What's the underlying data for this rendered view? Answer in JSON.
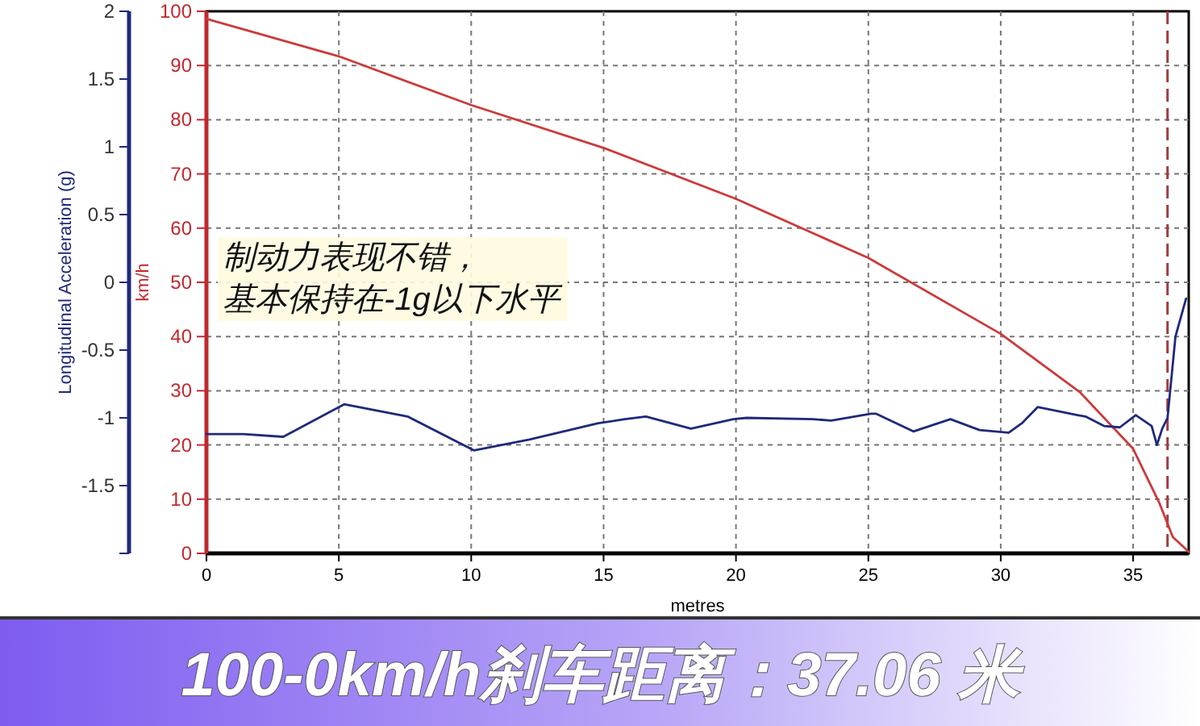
{
  "chart_data": {
    "type": "line",
    "title": "100-0km/h刹车距离：37.06 米",
    "xlabel": "metres",
    "ylabel": "km/h",
    "y2label": "Longitudinal Acceleration (g)",
    "annotations": [
      "制动力表现不错，",
      "基本保持在-1g以下水平"
    ],
    "xlim": [
      0,
      37.1
    ],
    "xticks": [
      0,
      5,
      10,
      15,
      20,
      25,
      30,
      35
    ],
    "ylim": [
      0,
      100
    ],
    "yticks": [
      0,
      10,
      20,
      30,
      40,
      50,
      60,
      70,
      80,
      90,
      100
    ],
    "y2lim": [
      -2,
      2
    ],
    "y2ticks": [
      2,
      1.5,
      1,
      0.5,
      0,
      -0.5,
      -1,
      -1.5,
      {
        "value": -2,
        "label": null
      }
    ],
    "grid": true,
    "marker": "none",
    "line_style": "solid",
    "ref_lines": [
      {
        "axis": "x",
        "value": 36.3,
        "color": "#a03c3c",
        "line_style": "dashed"
      }
    ],
    "series": [
      {
        "color": "#cc3a3a",
        "x": [
          0,
          5,
          10,
          15,
          20,
          25,
          30,
          33,
          35,
          36,
          36.5,
          37.1
        ],
        "values": [
          98.6,
          91.7,
          82.7,
          74.8,
          65.4,
          54.5,
          40.5,
          29.7,
          19.3,
          9.2,
          3,
          0.3
        ]
      },
      {
        "color": "#1f2a7a",
        "axis": "y2",
        "x": [
          0,
          1.4,
          2.9,
          5.2,
          7.6,
          10.1,
          12.2,
          14.8,
          15.8,
          16.6,
          18.3,
          19.9,
          20.4,
          22.9,
          23.6,
          25.1,
          25.3,
          26.7,
          28.1,
          29.2,
          30.3,
          30.8,
          31.4,
          32.9,
          33.2,
          33.9,
          34.5,
          35.1,
          35.7,
          35.9,
          36.1,
          36.3,
          36.6,
          37.0
        ],
        "values": [
          -1.12,
          -1.12,
          -1.14,
          -0.9,
          -0.99,
          -1.24,
          -1.16,
          -1.04,
          -1.01,
          -0.99,
          -1.08,
          -1.01,
          -1.0,
          -1.01,
          -1.02,
          -0.97,
          -0.97,
          -1.1,
          -1.01,
          -1.09,
          -1.11,
          -1.04,
          -0.92,
          -0.98,
          -0.99,
          -1.06,
          -1.07,
          -0.98,
          -1.06,
          -1.2,
          -1.08,
          -1.0,
          -0.4,
          -0.12
        ]
      }
    ]
  }
}
